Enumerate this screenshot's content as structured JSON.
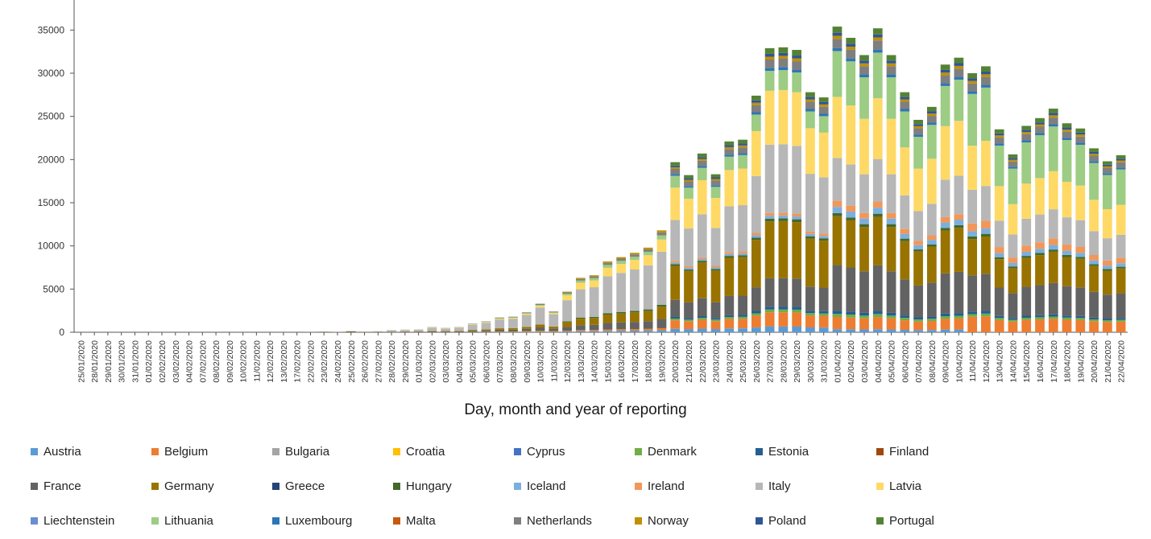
{
  "chart_data": {
    "type": "bar",
    "stacked": true,
    "title": "",
    "xlabel": "Day, month and year of reporting",
    "ylabel": "",
    "ylim": [
      0,
      37500
    ],
    "yticks": [
      0,
      5000,
      10000,
      15000,
      20000,
      25000,
      30000,
      35000
    ],
    "grid": false,
    "legend_position": "bottom",
    "categories": [
      "25/01/2020",
      "28/01/2020",
      "29/01/2020",
      "30/01/2020",
      "31/01/2020",
      "01/02/2020",
      "02/02/2020",
      "03/02/2020",
      "04/02/2020",
      "07/02/2020",
      "08/02/2020",
      "09/02/2020",
      "10/02/2020",
      "11/02/2020",
      "12/02/2020",
      "13/02/2020",
      "17/02/2020",
      "22/02/2020",
      "23/02/2020",
      "24/02/2020",
      "25/02/2020",
      "26/02/2020",
      "27/02/2020",
      "28/02/2020",
      "29/02/2020",
      "01/03/2020",
      "02/03/2020",
      "03/03/2020",
      "04/03/2020",
      "05/03/2020",
      "06/03/2020",
      "07/03/2020",
      "08/03/2020",
      "09/03/2020",
      "10/03/2020",
      "11/03/2020",
      "12/03/2020",
      "13/03/2020",
      "14/03/2020",
      "15/03/2020",
      "16/03/2020",
      "17/03/2020",
      "18/03/2020",
      "19/03/2020",
      "20/03/2020",
      "21/03/2020",
      "22/03/2020",
      "23/03/2020",
      "24/03/2020",
      "25/03/2020",
      "26/03/2020",
      "27/03/2020",
      "28/03/2020",
      "29/03/2020",
      "30/03/2020",
      "31/03/2020",
      "01/04/2020",
      "02/04/2020",
      "03/04/2020",
      "04/04/2020",
      "05/04/2020",
      "06/04/2020",
      "07/04/2020",
      "08/04/2020",
      "09/04/2020",
      "10/04/2020",
      "11/04/2020",
      "12/04/2020",
      "13/04/2020",
      "14/04/2020",
      "15/04/2020",
      "16/04/2020",
      "17/04/2020",
      "18/04/2020",
      "19/04/2020",
      "20/04/2020",
      "21/04/2020",
      "22/04/2020"
    ],
    "totals": [
      3,
      1,
      4,
      1,
      1,
      1,
      1,
      2,
      1,
      1,
      4,
      2,
      3,
      1,
      2,
      1,
      1,
      18,
      80,
      45,
      150,
      60,
      120,
      250,
      300,
      330,
      600,
      500,
      600,
      1000,
      1250,
      1700,
      1800,
      2300,
      3300,
      2400,
      4700,
      6300,
      6600,
      8200,
      8700,
      9200,
      9800,
      11800,
      19700,
      18200,
      20700,
      18300,
      22100,
      22300,
      27400,
      32900,
      33000,
      32700,
      27800,
      27200,
      35400,
      34100,
      32100,
      35200,
      32100,
      27800,
      24600,
      26100,
      31000,
      31800,
      30000,
      30800,
      23500,
      20600,
      23900,
      24800,
      25900,
      24200,
      23600,
      21300,
      19800,
      20500
    ],
    "series": [
      {
        "name": "Austria",
        "color": "#5b9bd5"
      },
      {
        "name": "Belgium",
        "color": "#ed7d31"
      },
      {
        "name": "Bulgaria",
        "color": "#a5a5a5"
      },
      {
        "name": "Croatia",
        "color": "#ffc000"
      },
      {
        "name": "Cyprus",
        "color": "#4472c4"
      },
      {
        "name": "Denmark",
        "color": "#70ad47"
      },
      {
        "name": "Estonia",
        "color": "#255e91"
      },
      {
        "name": "Finland",
        "color": "#9e480e"
      },
      {
        "name": "France",
        "color": "#636363"
      },
      {
        "name": "Germany",
        "color": "#997300"
      },
      {
        "name": "Greece",
        "color": "#264478"
      },
      {
        "name": "Hungary",
        "color": "#43682b"
      },
      {
        "name": "Iceland",
        "color": "#7cafdd"
      },
      {
        "name": "Ireland",
        "color": "#f1975a"
      },
      {
        "name": "Italy",
        "color": "#b7b7b7"
      },
      {
        "name": "Latvia",
        "color": "#ffd966"
      },
      {
        "name": "Liechtenstein",
        "color": "#698ed0"
      },
      {
        "name": "Lithuania",
        "color": "#9dcc84"
      },
      {
        "name": "Luxembourg",
        "color": "#2e75b6"
      },
      {
        "name": "Malta",
        "color": "#c55a11"
      },
      {
        "name": "Netherlands",
        "color": "#7f7f7f"
      },
      {
        "name": "Norway",
        "color": "#bf9000"
      },
      {
        "name": "Poland",
        "color": "#2f5597"
      },
      {
        "name": "Portugal",
        "color": "#548235"
      }
    ]
  }
}
